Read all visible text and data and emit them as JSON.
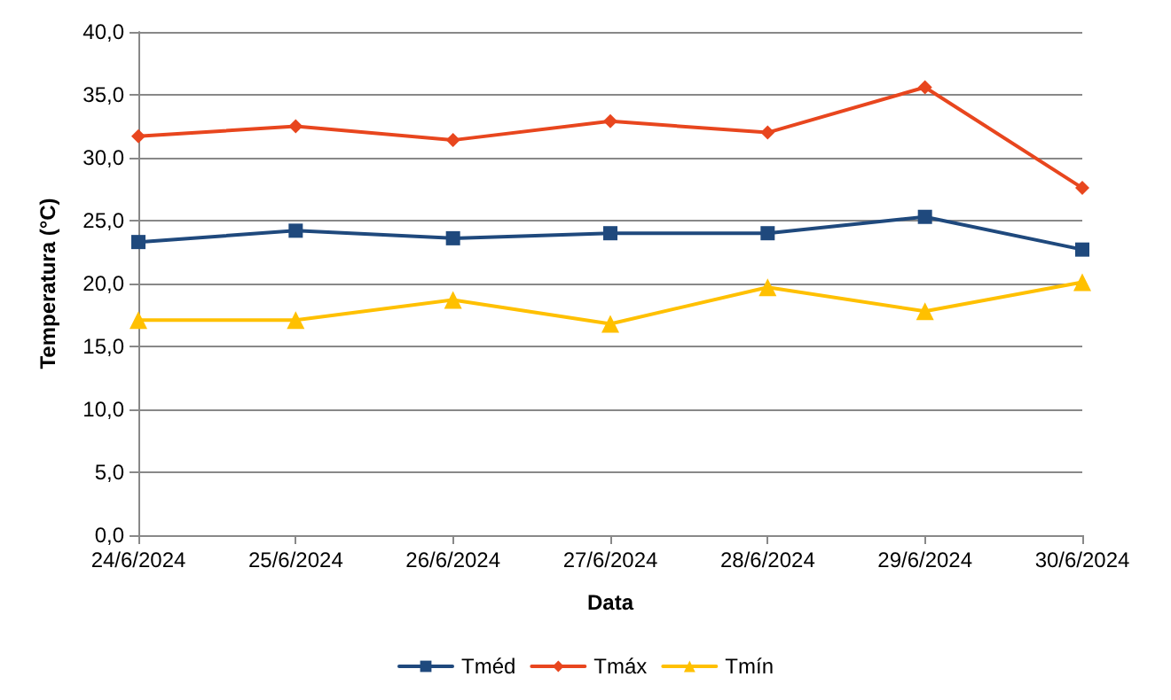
{
  "chart_data": {
    "type": "line",
    "xlabel": "Data",
    "ylabel": "Temperatura (°C)",
    "categories": [
      "24/6/2024",
      "25/6/2024",
      "26/6/2024",
      "27/6/2024",
      "28/6/2024",
      "29/6/2024",
      "30/6/2024"
    ],
    "series": [
      {
        "name": "Tméd",
        "color": "#1f497d",
        "marker": "square",
        "values": [
          23.3,
          24.2,
          23.6,
          24.0,
          24.0,
          25.3,
          22.7
        ]
      },
      {
        "name": "Tmáx",
        "color": "#e8461e",
        "marker": "diamond",
        "values": [
          31.7,
          32.5,
          31.4,
          32.9,
          32.0,
          35.6,
          27.6
        ]
      },
      {
        "name": "Tmín",
        "color": "#ffc000",
        "marker": "triangle",
        "values": [
          17.1,
          17.1,
          18.7,
          16.8,
          19.7,
          17.8,
          20.1
        ]
      }
    ],
    "ylim": [
      0,
      40
    ],
    "yticks": [
      {
        "value": 0,
        "label": "0,0"
      },
      {
        "value": 5,
        "label": "5,0"
      },
      {
        "value": 10,
        "label": "10,0"
      },
      {
        "value": 15,
        "label": "15,0"
      },
      {
        "value": 20,
        "label": "20,0"
      },
      {
        "value": 25,
        "label": "25,0"
      },
      {
        "value": 30,
        "label": "30,0"
      },
      {
        "value": 35,
        "label": "35,0"
      },
      {
        "value": 40,
        "label": "40,0"
      }
    ],
    "grid": "y",
    "legend": "bottom",
    "line_style": "solid"
  }
}
